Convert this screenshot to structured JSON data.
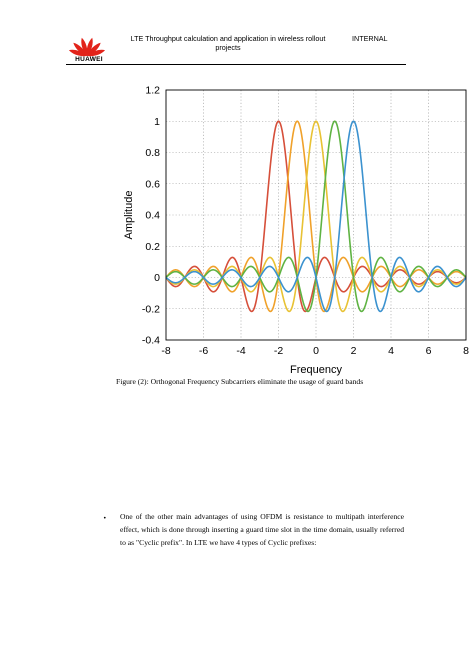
{
  "header": {
    "brand": "HUAWEI",
    "title": "LTE Throughput calculation and application in wireless rollout projects",
    "classification": "INTERNAL"
  },
  "chart_data": {
    "type": "line",
    "title": "",
    "xlabel": "Frequency",
    "ylabel": "Amplitude",
    "xlim": [
      -8,
      8
    ],
    "ylim": [
      -0.4,
      1.2
    ],
    "xticks": [
      -8,
      -6,
      -4,
      -2,
      0,
      2,
      4,
      6,
      8
    ],
    "yticks": [
      -0.4,
      -0.2,
      0,
      0.2,
      0.4,
      0.6,
      0.8,
      1,
      1.2
    ],
    "grid": true,
    "function": "sinc",
    "series": [
      {
        "center": -2,
        "peak": 1,
        "color": "#d64f3a"
      },
      {
        "center": -1,
        "peak": 1,
        "color": "#f0a12a"
      },
      {
        "center": 0,
        "peak": 1,
        "color": "#e8c234"
      },
      {
        "center": 1,
        "peak": 1,
        "color": "#5fb343"
      },
      {
        "center": 2,
        "peak": 1,
        "color": "#3b92cf"
      }
    ]
  },
  "caption": "Figure (2): Orthogonal Frequency Subcarriers eliminate the usage of guard bands",
  "bullet": {
    "symbol": "•",
    "text": "One of the other main advantages of using OFDM is resistance to multipath interference effect, which is done through inserting a guard time slot in the time domain, usually referred to as \"Cyclic prefix\". In LTE we have 4 types of Cyclic prefixes:"
  },
  "colors": {
    "logo_red": "#e2231a"
  }
}
